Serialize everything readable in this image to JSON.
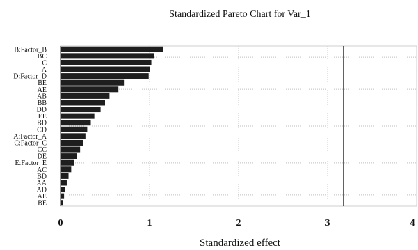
{
  "chart_data": {
    "type": "bar",
    "orientation": "horizontal",
    "title": "Standardized Pareto Chart for Var_1",
    "xlabel": "Standardized effect",
    "ylabel": "",
    "xlim": [
      0,
      4
    ],
    "xticks": [
      0,
      1,
      2,
      3,
      4
    ],
    "grid": true,
    "reference_line": 3.18,
    "categories": [
      "B:Factor_B",
      "BC",
      "C",
      "A",
      "D:Factor_D",
      "BE",
      "AE",
      "AB",
      "BB",
      "DD",
      "EE",
      "BD",
      "CD",
      "A:Factor_A",
      "C:Factor_C",
      "CC",
      "DE",
      "E:Factor_E",
      "AC",
      "BD",
      "AA",
      "AD",
      "AE",
      "BE"
    ],
    "values": [
      1.15,
      1.05,
      1.02,
      1.0,
      0.99,
      0.72,
      0.65,
      0.55,
      0.5,
      0.45,
      0.38,
      0.34,
      0.3,
      0.28,
      0.25,
      0.22,
      0.18,
      0.15,
      0.12,
      0.09,
      0.07,
      0.05,
      0.04,
      0.03
    ]
  }
}
